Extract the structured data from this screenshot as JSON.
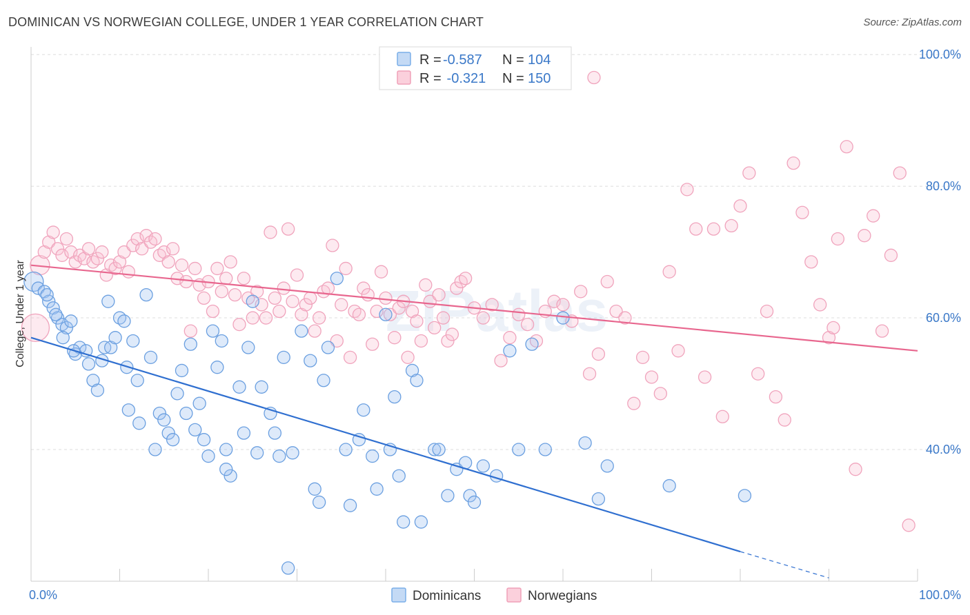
{
  "header": {
    "title": "DOMINICAN VS NORWEGIAN COLLEGE, UNDER 1 YEAR CORRELATION CHART",
    "source": "Source: ZipAtlas.com"
  },
  "watermark": "ZIPatlas",
  "legend_box": {
    "rows": [
      {
        "r_label": "R = ",
        "r_value": "-0.587",
        "n_label": "N = ",
        "n_value": "104",
        "color": "#7aaee8",
        "fill": "#c4daf5"
      },
      {
        "r_label": "R = ",
        "r_value": " -0.321",
        "n_label": "N = ",
        "n_value": "150",
        "color": "#f0a0b8",
        "fill": "#fbd0dc"
      }
    ]
  },
  "bottom_legend": [
    {
      "label": "Dominicans",
      "color": "#7aaee8",
      "fill": "#c4daf5"
    },
    {
      "label": "Norwegians",
      "color": "#f0a0b8",
      "fill": "#fbd0dc"
    }
  ],
  "colors": {
    "blue_line": "#2f6fd0",
    "pink_line": "#e8668e",
    "blue_point_stroke": "#6a9fe0",
    "blue_point_fill": "rgba(160,195,240,0.35)",
    "pink_point_stroke": "#f0a3bc",
    "pink_point_fill": "rgba(250,195,212,0.35)",
    "tick_text": "#3a78c8",
    "grid": "#dcdcdc"
  },
  "chart_data": {
    "type": "scatter",
    "title": "DOMINICAN VS NORWEGIAN COLLEGE, UNDER 1 YEAR CORRELATION CHART",
    "xlabel": "",
    "ylabel": "College, Under 1 year",
    "xlim": [
      0,
      100
    ],
    "ylim": [
      20,
      102
    ],
    "x_tick_labels": [
      "0.0%",
      "100.0%"
    ],
    "y_ticks": [
      40,
      60,
      80,
      100
    ],
    "y_tick_labels": [
      "40.0%",
      "60.0%",
      "80.0%",
      "100.0%"
    ],
    "grid": true,
    "legend_position": "top-center",
    "series": [
      {
        "name": "Dominicans",
        "r": -0.587,
        "n": 104,
        "trend": {
          "x0": 0,
          "y0": 57.0,
          "x1": 80,
          "y1": 24.5,
          "dashed_to_x": 90,
          "dashed_to_y": 20.5
        },
        "points": [
          [
            0.3,
            65.5
          ],
          [
            0.8,
            64.5
          ],
          [
            1.5,
            64.0
          ],
          [
            2.0,
            62.5
          ],
          [
            2.5,
            61.5
          ],
          [
            1.8,
            63.5
          ],
          [
            3.0,
            60.0
          ],
          [
            3.5,
            59.0
          ],
          [
            2.8,
            60.5
          ],
          [
            4.0,
            58.5
          ],
          [
            4.5,
            59.5
          ],
          [
            3.6,
            57.0
          ],
          [
            5.5,
            55.5
          ],
          [
            6.2,
            55.0
          ],
          [
            5.0,
            54.5
          ],
          [
            4.8,
            55.0
          ],
          [
            6.5,
            53.0
          ],
          [
            7.0,
            50.5
          ],
          [
            7.5,
            49.0
          ],
          [
            8.0,
            53.5
          ],
          [
            8.3,
            55.5
          ],
          [
            9.0,
            55.5
          ],
          [
            8.7,
            62.5
          ],
          [
            10.0,
            60.0
          ],
          [
            9.5,
            57.0
          ],
          [
            10.5,
            59.5
          ],
          [
            11.5,
            56.5
          ],
          [
            10.8,
            52.5
          ],
          [
            12.0,
            50.5
          ],
          [
            11.0,
            46.0
          ],
          [
            12.2,
            44.0
          ],
          [
            13.0,
            63.5
          ],
          [
            13.5,
            54.0
          ],
          [
            14.5,
            45.5
          ],
          [
            15.0,
            44.5
          ],
          [
            15.5,
            42.5
          ],
          [
            16.0,
            41.5
          ],
          [
            16.5,
            48.5
          ],
          [
            17.0,
            52.0
          ],
          [
            17.5,
            45.5
          ],
          [
            18.0,
            56.0
          ],
          [
            18.5,
            43.0
          ],
          [
            19.0,
            47.0
          ],
          [
            19.5,
            41.5
          ],
          [
            20.0,
            39.0
          ],
          [
            20.5,
            58.0
          ],
          [
            21.0,
            52.5
          ],
          [
            21.5,
            56.5
          ],
          [
            22.0,
            40.0
          ],
          [
            22.5,
            36.0
          ],
          [
            23.5,
            49.5
          ],
          [
            24.0,
            42.5
          ],
          [
            24.5,
            55.5
          ],
          [
            25.0,
            62.5
          ],
          [
            25.5,
            39.5
          ],
          [
            26.0,
            49.5
          ],
          [
            27.0,
            45.5
          ],
          [
            27.5,
            42.5
          ],
          [
            28.0,
            39.0
          ],
          [
            28.5,
            54.0
          ],
          [
            29.5,
            39.5
          ],
          [
            30.5,
            58.0
          ],
          [
            31.5,
            53.5
          ],
          [
            32.0,
            34.0
          ],
          [
            32.5,
            32.0
          ],
          [
            33.0,
            50.5
          ],
          [
            33.5,
            55.5
          ],
          [
            34.5,
            66.0
          ],
          [
            35.5,
            40.0
          ],
          [
            36.0,
            31.5
          ],
          [
            37.0,
            41.5
          ],
          [
            37.5,
            46.0
          ],
          [
            38.5,
            39.0
          ],
          [
            39.0,
            34.0
          ],
          [
            40.0,
            60.5
          ],
          [
            40.5,
            40.0
          ],
          [
            41.0,
            48.0
          ],
          [
            41.5,
            36.0
          ],
          [
            42.0,
            29.0
          ],
          [
            43.0,
            52.0
          ],
          [
            43.5,
            50.5
          ],
          [
            44.0,
            29.0
          ],
          [
            45.5,
            40.0
          ],
          [
            46.0,
            40.0
          ],
          [
            47.0,
            33.0
          ],
          [
            48.0,
            37.0
          ],
          [
            49.0,
            38.0
          ],
          [
            49.5,
            33.0
          ],
          [
            50.0,
            32.0
          ],
          [
            51.0,
            37.5
          ],
          [
            52.5,
            36.0
          ],
          [
            54.0,
            55.0
          ],
          [
            55.0,
            40.0
          ],
          [
            56.5,
            56.0
          ],
          [
            58.0,
            40.0
          ],
          [
            60.0,
            60.0
          ],
          [
            62.5,
            41.0
          ],
          [
            64.0,
            32.5
          ],
          [
            65.0,
            37.5
          ],
          [
            72.0,
            34.5
          ],
          [
            80.5,
            33.0
          ],
          [
            29.0,
            22.0
          ],
          [
            22.0,
            37.0
          ],
          [
            14.0,
            40.0
          ]
        ]
      },
      {
        "name": "Norwegians",
        "r": -0.321,
        "n": 150,
        "trend": {
          "x0": 0,
          "y0": 68.0,
          "x1": 100,
          "y1": 55.0
        },
        "points": [
          [
            0.5,
            58.5
          ],
          [
            1.0,
            68.0
          ],
          [
            1.5,
            70.0
          ],
          [
            2.0,
            71.5
          ],
          [
            2.5,
            73.0
          ],
          [
            3.0,
            70.5
          ],
          [
            3.5,
            69.5
          ],
          [
            4.0,
            72.0
          ],
          [
            4.5,
            70.0
          ],
          [
            5.0,
            68.5
          ],
          [
            5.5,
            69.5
          ],
          [
            6.0,
            69.0
          ],
          [
            6.5,
            70.5
          ],
          [
            7.0,
            68.5
          ],
          [
            7.5,
            69.0
          ],
          [
            8.0,
            70.0
          ],
          [
            8.5,
            66.5
          ],
          [
            9.0,
            68.0
          ],
          [
            9.5,
            67.5
          ],
          [
            10.0,
            68.5
          ],
          [
            10.5,
            70.0
          ],
          [
            11.0,
            67.0
          ],
          [
            11.5,
            71.0
          ],
          [
            12.0,
            72.0
          ],
          [
            12.5,
            70.5
          ],
          [
            13.0,
            72.5
          ],
          [
            13.5,
            71.5
          ],
          [
            14.0,
            72.0
          ],
          [
            14.5,
            69.5
          ],
          [
            15.0,
            70.0
          ],
          [
            15.5,
            68.5
          ],
          [
            16.0,
            70.5
          ],
          [
            16.5,
            66.0
          ],
          [
            17.0,
            68.0
          ],
          [
            17.5,
            65.5
          ],
          [
            18.0,
            58.0
          ],
          [
            18.5,
            67.5
          ],
          [
            19.0,
            65.0
          ],
          [
            19.5,
            63.0
          ],
          [
            20.0,
            65.5
          ],
          [
            20.5,
            61.0
          ],
          [
            21.0,
            67.5
          ],
          [
            21.5,
            64.0
          ],
          [
            22.0,
            66.0
          ],
          [
            22.5,
            68.5
          ],
          [
            23.0,
            63.5
          ],
          [
            23.5,
            59.0
          ],
          [
            24.0,
            66.0
          ],
          [
            24.5,
            63.0
          ],
          [
            25.0,
            60.0
          ],
          [
            25.5,
            64.0
          ],
          [
            26.0,
            62.0
          ],
          [
            26.5,
            60.0
          ],
          [
            27.0,
            73.0
          ],
          [
            27.5,
            63.0
          ],
          [
            28.0,
            61.0
          ],
          [
            28.5,
            64.5
          ],
          [
            29.0,
            73.5
          ],
          [
            29.5,
            62.5
          ],
          [
            30.0,
            66.5
          ],
          [
            30.5,
            60.5
          ],
          [
            31.0,
            62.0
          ],
          [
            31.5,
            63.0
          ],
          [
            32.0,
            58.0
          ],
          [
            32.5,
            60.0
          ],
          [
            33.0,
            64.0
          ],
          [
            33.5,
            64.5
          ],
          [
            34.0,
            71.0
          ],
          [
            34.5,
            56.5
          ],
          [
            35.0,
            62.0
          ],
          [
            35.5,
            67.5
          ],
          [
            36.0,
            54.0
          ],
          [
            36.5,
            61.0
          ],
          [
            37.0,
            60.5
          ],
          [
            37.5,
            64.5
          ],
          [
            38.0,
            63.5
          ],
          [
            38.5,
            56.0
          ],
          [
            39.0,
            61.0
          ],
          [
            39.5,
            67.0
          ],
          [
            40.0,
            63.0
          ],
          [
            40.5,
            60.5
          ],
          [
            41.0,
            57.0
          ],
          [
            41.5,
            61.5
          ],
          [
            42.0,
            62.5
          ],
          [
            42.5,
            54.0
          ],
          [
            43.0,
            61.0
          ],
          [
            43.5,
            59.5
          ],
          [
            44.0,
            56.5
          ],
          [
            44.5,
            65.0
          ],
          [
            45.0,
            62.5
          ],
          [
            45.5,
            58.5
          ],
          [
            46.0,
            63.5
          ],
          [
            46.5,
            60.0
          ],
          [
            47.0,
            56.5
          ],
          [
            47.5,
            57.5
          ],
          [
            48.0,
            64.5
          ],
          [
            48.5,
            65.5
          ],
          [
            49.0,
            66.0
          ],
          [
            50.0,
            61.5
          ],
          [
            51.0,
            60.0
          ],
          [
            52.0,
            62.0
          ],
          [
            53.0,
            53.5
          ],
          [
            54.0,
            57.0
          ],
          [
            55.0,
            60.5
          ],
          [
            56.0,
            59.0
          ],
          [
            57.0,
            56.5
          ],
          [
            58.0,
            61.0
          ],
          [
            59.0,
            62.5
          ],
          [
            60.0,
            62.0
          ],
          [
            61.0,
            59.5
          ],
          [
            62.0,
            64.0
          ],
          [
            63.0,
            51.5
          ],
          [
            64.0,
            54.5
          ],
          [
            65.0,
            65.5
          ],
          [
            66.0,
            61.0
          ],
          [
            67.0,
            60.0
          ],
          [
            68.0,
            47.0
          ],
          [
            69.0,
            54.0
          ],
          [
            70.0,
            51.0
          ],
          [
            71.0,
            48.5
          ],
          [
            72.0,
            67.0
          ],
          [
            73.0,
            55.0
          ],
          [
            74.0,
            79.5
          ],
          [
            75.0,
            73.5
          ],
          [
            76.0,
            51.0
          ],
          [
            77.0,
            73.5
          ],
          [
            78.0,
            45.0
          ],
          [
            79.0,
            74.0
          ],
          [
            80.0,
            77.0
          ],
          [
            81.0,
            82.0
          ],
          [
            82.0,
            51.5
          ],
          [
            83.0,
            61.0
          ],
          [
            84.0,
            48.0
          ],
          [
            85.0,
            44.5
          ],
          [
            86.0,
            83.5
          ],
          [
            87.0,
            76.0
          ],
          [
            88.0,
            68.5
          ],
          [
            89.0,
            62.0
          ],
          [
            90.0,
            57.0
          ],
          [
            91.0,
            72.0
          ],
          [
            92.0,
            86.0
          ],
          [
            93.0,
            37.0
          ],
          [
            94.0,
            72.5
          ],
          [
            95.0,
            75.5
          ],
          [
            96.0,
            58.0
          ],
          [
            97.0,
            69.5
          ],
          [
            98.0,
            82.0
          ],
          [
            99.0,
            28.5
          ],
          [
            63.5,
            96.5
          ],
          [
            90.5,
            58.5
          ]
        ]
      }
    ]
  }
}
